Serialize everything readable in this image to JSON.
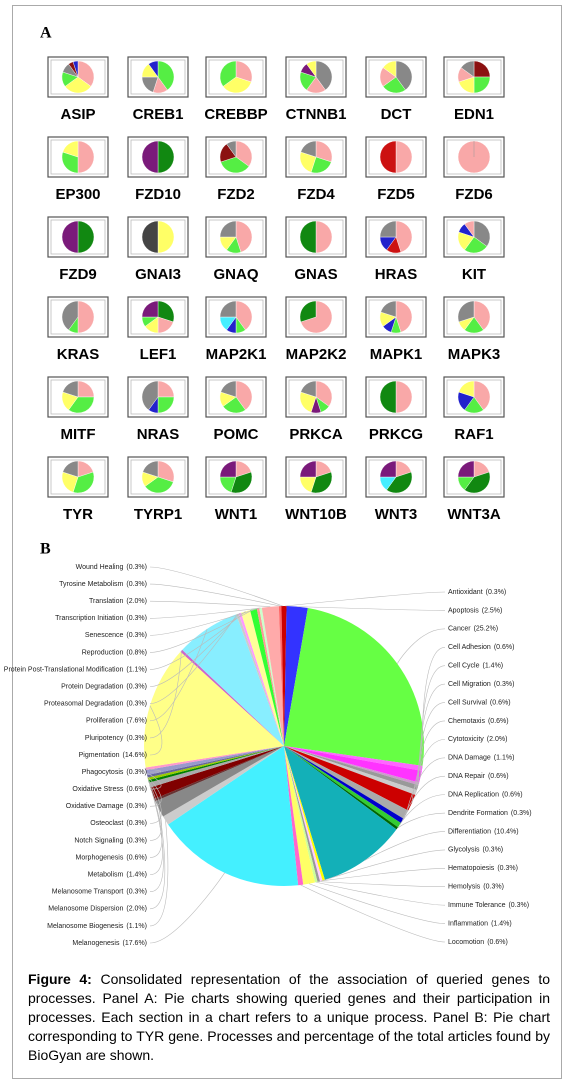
{
  "panel_a": {
    "label": "A",
    "genes": [
      {
        "name": "ASIP",
        "values": [
          35,
          30,
          15,
          10,
          5,
          5
        ],
        "colors": [
          "#f9a8a8",
          "#ffff66",
          "#55ee44",
          "#888888",
          "#8b1111",
          "#2222cc"
        ]
      },
      {
        "name": "CREB1",
        "values": [
          40,
          15,
          20,
          15,
          10
        ],
        "colors": [
          "#55ee44",
          "#f9a8a8",
          "#888888",
          "#ffff66",
          "#2222cc"
        ]
      },
      {
        "name": "CREBBP",
        "values": [
          30,
          35,
          35
        ],
        "colors": [
          "#f9a8a8",
          "#ffff66",
          "#55ee44"
        ]
      },
      {
        "name": "CTNNB1",
        "values": [
          40,
          20,
          20,
          10,
          10
        ],
        "colors": [
          "#888888",
          "#f9a8a8",
          "#55ee44",
          "#7a1a7a",
          "#ffff66"
        ]
      },
      {
        "name": "DCT",
        "values": [
          40,
          25,
          20,
          15
        ],
        "colors": [
          "#888888",
          "#55ee44",
          "#f9a8a8",
          "#ffff66"
        ]
      },
      {
        "name": "EDN1",
        "values": [
          25,
          25,
          20,
          15,
          15
        ],
        "colors": [
          "#8b1111",
          "#55ee44",
          "#ffff66",
          "#f9a8a8",
          "#888888"
        ]
      },
      {
        "name": "EP300",
        "values": [
          50,
          30,
          20
        ],
        "colors": [
          "#f9a8a8",
          "#55ee44",
          "#ffff66"
        ]
      },
      {
        "name": "FZD10",
        "values": [
          50,
          50
        ],
        "colors": [
          "#118811",
          "#7a1a7a"
        ]
      },
      {
        "name": "FZD2",
        "values": [
          35,
          35,
          20,
          10
        ],
        "colors": [
          "#f9a8a8",
          "#55ee44",
          "#8b1111",
          "#888888"
        ]
      },
      {
        "name": "FZD4",
        "values": [
          30,
          25,
          25,
          20
        ],
        "colors": [
          "#f9a8a8",
          "#55ee44",
          "#ffff66",
          "#888888"
        ]
      },
      {
        "name": "FZD5",
        "values": [
          50,
          50
        ],
        "colors": [
          "#f9a8a8",
          "#cc1111"
        ]
      },
      {
        "name": "FZD6",
        "values": [
          100
        ],
        "colors": [
          "#f9a8a8"
        ]
      },
      {
        "name": "FZD9",
        "values": [
          50,
          50
        ],
        "colors": [
          "#118811",
          "#7a1a7a"
        ]
      },
      {
        "name": "GNAI3",
        "values": [
          50,
          50
        ],
        "colors": [
          "#ffff66",
          "#444444"
        ]
      },
      {
        "name": "GNAQ",
        "values": [
          45,
          15,
          15,
          25
        ],
        "colors": [
          "#f9a8a8",
          "#55ee44",
          "#ffff66",
          "#888888"
        ]
      },
      {
        "name": "GNAS",
        "values": [
          50,
          50
        ],
        "colors": [
          "#f9a8a8",
          "#118811"
        ]
      },
      {
        "name": "HRAS",
        "values": [
          45,
          15,
          15,
          25
        ],
        "colors": [
          "#f9a8a8",
          "#cc1111",
          "#2222cc",
          "#888888"
        ]
      },
      {
        "name": "KIT",
        "values": [
          35,
          25,
          20,
          10,
          10
        ],
        "colors": [
          "#888888",
          "#55ee44",
          "#ffff66",
          "#2222cc",
          "#f9a8a8"
        ]
      },
      {
        "name": "KRAS",
        "values": [
          50,
          10,
          40
        ],
        "colors": [
          "#f9a8a8",
          "#55ee44",
          "#888888"
        ]
      },
      {
        "name": "LEF1",
        "values": [
          30,
          20,
          15,
          10,
          25
        ],
        "colors": [
          "#118811",
          "#f9a8a8",
          "#ffff66",
          "#55ee44",
          "#7a1a7a"
        ]
      },
      {
        "name": "MAP2K1",
        "values": [
          40,
          10,
          10,
          15,
          25
        ],
        "colors": [
          "#f9a8a8",
          "#55ee44",
          "#2222cc",
          "#44eeff",
          "#888888"
        ]
      },
      {
        "name": "MAP2K2",
        "values": [
          70,
          30
        ],
        "colors": [
          "#f9a8a8",
          "#118811"
        ]
      },
      {
        "name": "MAPK1",
        "values": [
          45,
          10,
          10,
          15,
          20
        ],
        "colors": [
          "#f9a8a8",
          "#55ee44",
          "#2222cc",
          "#ffff66",
          "#888888"
        ]
      },
      {
        "name": "MAPK3",
        "values": [
          40,
          20,
          10,
          30
        ],
        "colors": [
          "#f9a8a8",
          "#55ee44",
          "#ffff66",
          "#888888"
        ]
      },
      {
        "name": "MITF",
        "values": [
          25,
          35,
          20,
          20
        ],
        "colors": [
          "#f9a8a8",
          "#55ee44",
          "#ffff66",
          "#888888"
        ]
      },
      {
        "name": "NRAS",
        "values": [
          25,
          25,
          10,
          40
        ],
        "colors": [
          "#f9a8a8",
          "#55ee44",
          "#2222cc",
          "#888888"
        ]
      },
      {
        "name": "POMC",
        "values": [
          40,
          25,
          15,
          20
        ],
        "colors": [
          "#f9a8a8",
          "#55ee44",
          "#ffff66",
          "#888888"
        ]
      },
      {
        "name": "PRKCA",
        "values": [
          35,
          10,
          10,
          25,
          20
        ],
        "colors": [
          "#f9a8a8",
          "#55ee44",
          "#7a1a7a",
          "#ffff66",
          "#888888"
        ]
      },
      {
        "name": "PRKCG",
        "values": [
          50,
          50
        ],
        "colors": [
          "#f9a8a8",
          "#118811"
        ]
      },
      {
        "name": "RAF1",
        "values": [
          40,
          20,
          20,
          20
        ],
        "colors": [
          "#f9a8a8",
          "#55ee44",
          "#2222cc",
          "#ffff66"
        ]
      },
      {
        "name": "TYR",
        "values": [
          20,
          35,
          25,
          20
        ],
        "colors": [
          "#f9a8a8",
          "#55ee44",
          "#ffff66",
          "#888888"
        ]
      },
      {
        "name": "TYRP1",
        "values": [
          30,
          35,
          15,
          20
        ],
        "colors": [
          "#f9a8a8",
          "#55ee44",
          "#ffff66",
          "#888888"
        ]
      },
      {
        "name": "WNT1",
        "values": [
          20,
          35,
          20,
          25
        ],
        "colors": [
          "#f9a8a8",
          "#118811",
          "#55ee44",
          "#7a1a7a"
        ]
      },
      {
        "name": "WNT10B",
        "values": [
          20,
          35,
          20,
          25
        ],
        "colors": [
          "#f9a8a8",
          "#118811",
          "#ffff66",
          "#7a1a7a"
        ]
      },
      {
        "name": "WNT3",
        "values": [
          20,
          40,
          15,
          25
        ],
        "colors": [
          "#f9a8a8",
          "#118811",
          "#44eeff",
          "#7a1a7a"
        ]
      },
      {
        "name": "WNT3A",
        "values": [
          20,
          40,
          15,
          25
        ],
        "colors": [
          "#f9a8a8",
          "#118811",
          "#55ee44",
          "#7a1a7a"
        ]
      }
    ]
  },
  "chart_data": {
    "type": "pie",
    "panel_label": "B",
    "categories": [
      "Antioxidant",
      "Apoptosis",
      "Cancer",
      "Cell Adhesion",
      "Cell Cycle",
      "Cell Migration",
      "Cell Survival",
      "Chemotaxis",
      "Cytotoxicity",
      "DNA Damage",
      "DNA Repair",
      "DNA Replication",
      "Dendrite Formation",
      "Differentiation",
      "Glycolysis",
      "Hematopoiesis",
      "Hemolysis",
      "Immune Tolerance",
      "Inflammation",
      "Locomotion",
      "Melanogenesis",
      "Melanosome Biogenesis",
      "Melanosome Dispersion",
      "Melanosome Transport",
      "Metabolism",
      "Morphogenesis",
      "Notch Signaling",
      "Osteoclast",
      "Oxidative Damage",
      "Oxidative Stress",
      "Phagocytosis",
      "Pigmentation",
      "Pluripotency",
      "Proliferation",
      "Proteasomal Degradation",
      "Protein Degradation",
      "Protein Post-Translational Modification",
      "Reproduction",
      "Senescence",
      "Transcription Initiation",
      "Translation",
      "Tyrosine Metabolism",
      "Wound Healing"
    ],
    "values": [
      0.3,
      2.5,
      25.2,
      0.6,
      1.4,
      0.3,
      0.6,
      0.6,
      2.0,
      1.1,
      0.6,
      0.6,
      0.3,
      10.4,
      0.3,
      0.3,
      0.3,
      0.3,
      1.4,
      0.6,
      17.6,
      1.1,
      2.0,
      0.3,
      1.4,
      0.6,
      0.3,
      0.3,
      0.3,
      0.6,
      0.3,
      14.6,
      0.3,
      7.6,
      0.3,
      0.3,
      1.1,
      0.8,
      0.3,
      0.3,
      2.0,
      0.3,
      0.3
    ],
    "value_labels": [
      "(0.3%)",
      "(2.5%)",
      "(25.2%)",
      "(0.6%)",
      "(1.4%)",
      "(0.3%)",
      "(0.6%)",
      "(0.6%)",
      "(2.0%)",
      "(1.1%)",
      "(0.6%)",
      "(0.6%)",
      "(0.3%)",
      "(10.4%)",
      "(0.3%)",
      "(0.3%)",
      "(0.3%)",
      "(0.3%)",
      "(1.4%)",
      "(0.6%)",
      "(17.6%)",
      "(1.1%)",
      "(2.0%)",
      "(0.3%)",
      "(1.4%)",
      "(0.6%)",
      "(0.3%)",
      "(0.3%)",
      "(0.3%)",
      "(0.6%)",
      "(0.3%)",
      "(14.6%)",
      "(0.3%)",
      "(7.6%)",
      "(0.3%)",
      "(0.3%)",
      "(1.1%)",
      "(0.8%)",
      "(0.3%)",
      "(0.3%)",
      "(2.0%)",
      "(0.3%)",
      "(0.3%)"
    ],
    "colors": [
      "#cc0000",
      "#3333ff",
      "#66ff44",
      "#ff66ff",
      "#ff33ff",
      "#cc99cc",
      "#999999",
      "#cccccc",
      "#cc0000",
      "#aaaaaa",
      "#0000cc",
      "#33cc33",
      "#006600",
      "#13b0b8",
      "#ffff00",
      "#ffccff",
      "#999999",
      "#ccff99",
      "#ffff66",
      "#ff66cc",
      "#44f0ff",
      "#cccccc",
      "#888888",
      "#663333",
      "#800000",
      "#aaaaaa",
      "#008000",
      "#99cc00",
      "#666699",
      "#9999cc",
      "#ff99cc",
      "#ffff88",
      "#cc66cc",
      "#88eeff",
      "#cccccc",
      "#ff99ff",
      "#ffff99",
      "#33ff33",
      "#ff9999",
      "#ccffcc",
      "#ffaaaa",
      "#ff6666",
      "#cc0000"
    ],
    "right_count": 20
  },
  "caption": {
    "label": "Figure 4:",
    "text": "Consolidated representation of the association of queried genes to processes. Panel A: Pie charts showing queried genes and their participation in processes. Each section in a chart refers to a unique process. Panel B: Pie chart corresponding to TYR gene. Processes and percentage of the total articles found by BioGyan are shown."
  }
}
